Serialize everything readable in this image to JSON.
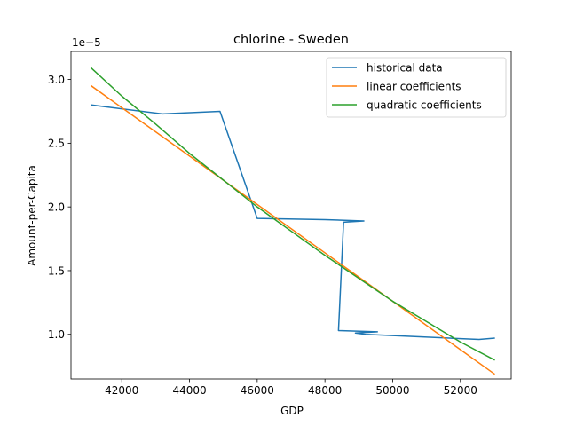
{
  "chart_data": {
    "type": "line",
    "title": "chlorine - Sweden",
    "xlabel": "GDP",
    "ylabel": "Amount-per-Capita",
    "y_offset_text": "1e−5",
    "xlim": [
      40500,
      53500
    ],
    "ylim": [
      6.5e-06,
      3.22e-05
    ],
    "x_ticks": [
      42000,
      44000,
      46000,
      48000,
      50000,
      52000
    ],
    "x_tick_labels": [
      "42000",
      "44000",
      "46000",
      "48000",
      "50000",
      "52000"
    ],
    "y_ticks": [
      1e-05,
      1.5e-05,
      2e-05,
      2.5e-05,
      3e-05
    ],
    "y_tick_labels": [
      "1.0",
      "1.5",
      "2.0",
      "2.5",
      "3.0"
    ],
    "grid": false,
    "legend_position": "upper right",
    "series": [
      {
        "name": "historical data",
        "color": "#1f77b4",
        "points": [
          [
            41100,
            2.8e-05
          ],
          [
            43200,
            2.73e-05
          ],
          [
            44900,
            2.75e-05
          ],
          [
            46000,
            1.91e-05
          ],
          [
            48000,
            1.9e-05
          ],
          [
            49150,
            1.89e-05
          ],
          [
            48550,
            1.88e-05
          ],
          [
            48400,
            1.03e-05
          ],
          [
            49550,
            1.02e-05
          ],
          [
            48900,
            1.01e-05
          ],
          [
            49200,
            1e-05
          ],
          [
            52550,
            9.6e-06
          ],
          [
            53000,
            9.7e-06
          ]
        ]
      },
      {
        "name": "linear coefficients",
        "color": "#ff7f0e",
        "points": [
          [
            41100,
            2.95e-05
          ],
          [
            53000,
            6.9e-06
          ]
        ]
      },
      {
        "name": "quadratic coefficients",
        "color": "#2ca02c",
        "points": [
          [
            41100,
            3.09e-05
          ],
          [
            42000,
            2.87e-05
          ],
          [
            43000,
            2.65e-05
          ],
          [
            44000,
            2.42e-05
          ],
          [
            45000,
            2.21e-05
          ],
          [
            46000,
            2e-05
          ],
          [
            47000,
            1.81e-05
          ],
          [
            48000,
            1.62e-05
          ],
          [
            49000,
            1.44e-05
          ],
          [
            50000,
            1.26e-05
          ],
          [
            51000,
            1.1e-05
          ],
          [
            52000,
            9.4e-06
          ],
          [
            53000,
            8e-06
          ]
        ]
      }
    ]
  }
}
